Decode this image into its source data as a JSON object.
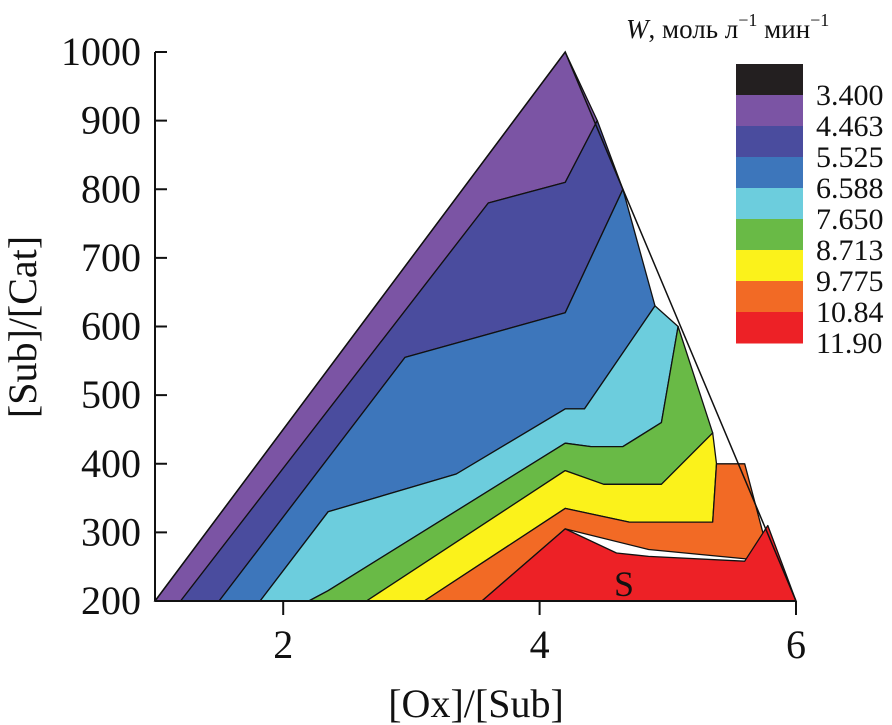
{
  "chart_data": {
    "type": "contour",
    "title": "",
    "xlabel": "[Ox]/[Sub]",
    "ylabel": "[Sub]/[Cat]",
    "xlim": [
      1,
      6
    ],
    "ylim": [
      200,
      1000
    ],
    "x_ticks": [
      "2",
      "4",
      "6"
    ],
    "y_ticks": [
      "1000",
      "900",
      "800",
      "700",
      "600",
      "500",
      "400",
      "300",
      "200"
    ],
    "legend": {
      "title_var": "W",
      "title_units": ", моль л",
      "title_exp1": "−1",
      "title_units2": " мин",
      "title_exp2": "−1",
      "levels": [
        "3.400",
        "4.463",
        "5.525",
        "6.588",
        "7.650",
        "8.713",
        "9.775",
        "10.84",
        "11.90"
      ],
      "colors": [
        "#231f20",
        "#7b54a4",
        "#4a4c9e",
        "#3d76bb",
        "#6ccddd",
        "#69ba46",
        "#fbf21b",
        "#f26a25",
        "#ed2126"
      ]
    },
    "domain": [
      [
        1,
        200
      ],
      [
        4.2,
        1000
      ],
      [
        6,
        200
      ]
    ],
    "regions": [
      {
        "level": "4.463",
        "color": "#7b54a4",
        "polygon": [
          [
            1,
            200
          ],
          [
            1.2,
            200
          ],
          [
            3.6,
            780
          ],
          [
            4.2,
            810
          ],
          [
            4.45,
            900
          ],
          [
            4.2,
            1000
          ]
        ]
      },
      {
        "level": "5.525",
        "color": "#4a4c9e",
        "polygon": [
          [
            1.2,
            200
          ],
          [
            1.5,
            200
          ],
          [
            2.95,
            555
          ],
          [
            4.2,
            620
          ],
          [
            4.65,
            800
          ],
          [
            4.45,
            900
          ],
          [
            4.2,
            810
          ],
          [
            3.6,
            780
          ]
        ]
      },
      {
        "level": "6.588",
        "color": "#3d76bb",
        "polygon": [
          [
            1.5,
            200
          ],
          [
            1.82,
            200
          ],
          [
            2.35,
            330
          ],
          [
            3.35,
            385
          ],
          [
            4.2,
            480
          ],
          [
            4.35,
            480
          ],
          [
            4.9,
            630
          ],
          [
            4.65,
            800
          ],
          [
            4.2,
            620
          ],
          [
            2.95,
            555
          ]
        ]
      },
      {
        "level": "7.650",
        "color": "#6ccddd",
        "polygon": [
          [
            1.82,
            200
          ],
          [
            2.2,
            200
          ],
          [
            2.35,
            215
          ],
          [
            4.2,
            430
          ],
          [
            4.4,
            425
          ],
          [
            4.65,
            425
          ],
          [
            4.95,
            460
          ],
          [
            5.08,
            600
          ],
          [
            4.9,
            630
          ],
          [
            4.35,
            480
          ],
          [
            4.2,
            480
          ],
          [
            3.35,
            385
          ],
          [
            2.35,
            330
          ]
        ]
      },
      {
        "level": "8.713",
        "color": "#69ba46",
        "polygon": [
          [
            2.2,
            200
          ],
          [
            2.65,
            200
          ],
          [
            4.2,
            390
          ],
          [
            4.5,
            370
          ],
          [
            4.95,
            370
          ],
          [
            5.35,
            445
          ],
          [
            5.08,
            600
          ],
          [
            4.95,
            460
          ],
          [
            4.65,
            425
          ],
          [
            4.4,
            425
          ],
          [
            4.2,
            430
          ],
          [
            2.35,
            215
          ]
        ]
      },
      {
        "level": "9.775",
        "color": "#fbf21b",
        "polygon": [
          [
            2.65,
            200
          ],
          [
            3.1,
            200
          ],
          [
            4.2,
            335
          ],
          [
            4.7,
            315
          ],
          [
            5.35,
            315
          ],
          [
            5.38,
            400
          ],
          [
            5.35,
            445
          ],
          [
            4.95,
            370
          ],
          [
            4.5,
            370
          ],
          [
            4.2,
            390
          ]
        ]
      },
      {
        "level": "10.84",
        "color": "#f26a25",
        "polygon": [
          [
            3.1,
            200
          ],
          [
            3.55,
            200
          ],
          [
            4.2,
            305
          ],
          [
            4.85,
            275
          ],
          [
            5.8,
            258
          ],
          [
            5.6,
            400
          ],
          [
            5.38,
            400
          ],
          [
            5.35,
            315
          ],
          [
            4.7,
            315
          ],
          [
            4.2,
            335
          ]
        ]
      },
      {
        "level": "11.90",
        "color": "#ed2126",
        "polygon": [
          [
            3.55,
            200
          ],
          [
            6,
            200
          ],
          [
            5.78,
            310
          ],
          [
            5.6,
            258
          ],
          [
            4.85,
            265
          ],
          [
            4.6,
            270
          ],
          [
            4.2,
            305
          ]
        ]
      }
    ],
    "annotations": [
      {
        "text": "S",
        "x": 4.58,
        "y": 225
      }
    ]
  }
}
